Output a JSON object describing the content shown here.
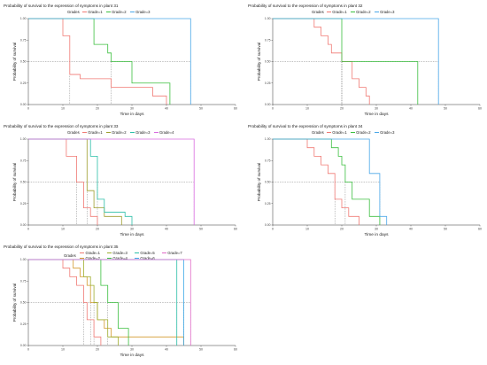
{
  "chart_data": [
    {
      "type": "line",
      "subtype": "kaplan-meier-step",
      "title": "Probability of survival to the expression of symptoms in plant 31",
      "xlabel": "Time in days",
      "ylabel": "Probability of survival",
      "xlim": [
        0,
        60
      ],
      "ylim": [
        0,
        1
      ],
      "x_ticks": [
        "0",
        "10",
        "20",
        "30",
        "40",
        "50",
        "60"
      ],
      "y_ticks": [
        "0.00",
        "0.25",
        "0.50",
        "0.75",
        "1.00"
      ],
      "legend_title": "Grades",
      "legend_position": "top",
      "median_line": 0.5,
      "series": [
        {
          "name": "Grade=1",
          "color": "#F07A74",
          "x": [
            0,
            10,
            12,
            15,
            24,
            36,
            40
          ],
          "y": [
            1.0,
            0.8,
            0.35,
            0.3,
            0.2,
            0.1,
            0.0
          ]
        },
        {
          "name": "Grade=2",
          "color": "#3BBF3F",
          "x": [
            0,
            19,
            23,
            24,
            30,
            41
          ],
          "y": [
            1.0,
            0.7,
            0.6,
            0.5,
            0.25,
            0.0
          ]
        },
        {
          "name": "Grade=3",
          "color": "#4AA7E8",
          "x": [
            0,
            47
          ],
          "y": [
            1.0,
            0.0
          ]
        }
      ]
    },
    {
      "type": "line",
      "subtype": "kaplan-meier-step",
      "title": "Probability of survival to the expression of symptoms in plant 32",
      "xlabel": "Time in days",
      "ylabel": "Probability of survival",
      "xlim": [
        0,
        60
      ],
      "ylim": [
        0,
        1
      ],
      "x_ticks": [
        "0",
        "10",
        "20",
        "30",
        "40",
        "50",
        "60"
      ],
      "y_ticks": [
        "0.00",
        "0.25",
        "0.50",
        "0.75",
        "1.00"
      ],
      "legend_title": "Grades",
      "legend_position": "top",
      "median_line": 0.5,
      "series": [
        {
          "name": "Grade=1",
          "color": "#F07A74",
          "x": [
            0,
            12,
            14,
            16,
            17,
            20,
            23,
            25,
            27,
            28
          ],
          "y": [
            1.0,
            0.9,
            0.8,
            0.7,
            0.6,
            0.5,
            0.3,
            0.2,
            0.1,
            0.0
          ]
        },
        {
          "name": "Grade=2",
          "color": "#3BBF3F",
          "x": [
            0,
            20,
            23,
            42
          ],
          "y": [
            1.0,
            0.5,
            0.5,
            0.0
          ]
        },
        {
          "name": "Grade=3",
          "color": "#4AA7E8",
          "x": [
            0,
            48
          ],
          "y": [
            1.0,
            0.0
          ]
        }
      ]
    },
    {
      "type": "line",
      "subtype": "kaplan-meier-step",
      "title": "Probability of survival to the expression of symptoms in plant 33",
      "xlabel": "Time in days",
      "ylabel": "Probability of survival",
      "xlim": [
        0,
        60
      ],
      "ylim": [
        0,
        1
      ],
      "x_ticks": [
        "0",
        "10",
        "20",
        "30",
        "40",
        "50",
        "60"
      ],
      "y_ticks": [
        "0.00",
        "0.25",
        "0.50",
        "0.75",
        "1.00"
      ],
      "legend_title": "Grades",
      "legend_position": "top",
      "median_line": 0.5,
      "series": [
        {
          "name": "Grade=1",
          "color": "#F07A74",
          "x": [
            0,
            11,
            14,
            16,
            18,
            20
          ],
          "y": [
            1.0,
            0.8,
            0.5,
            0.2,
            0.1,
            0.0
          ]
        },
        {
          "name": "Grade=2",
          "color": "#9E9E2E",
          "x": [
            0,
            17,
            19,
            22,
            27
          ],
          "y": [
            1.0,
            0.4,
            0.2,
            0.1,
            0.0
          ]
        },
        {
          "name": "Grade=3",
          "color": "#2BBFA8",
          "x": [
            0,
            18,
            20,
            22,
            28,
            30
          ],
          "y": [
            1.0,
            0.8,
            0.3,
            0.15,
            0.1,
            0.0
          ]
        },
        {
          "name": "Grade=4",
          "color": "#D86BE0",
          "x": [
            0,
            48
          ],
          "y": [
            1.0,
            0.0
          ]
        }
      ]
    },
    {
      "type": "line",
      "subtype": "kaplan-meier-step",
      "title": "Probability of survival to the expression of symptoms in plant 34",
      "xlabel": "Time in days",
      "ylabel": "Probability of survival",
      "xlim": [
        0,
        60
      ],
      "ylim": [
        0,
        1
      ],
      "x_ticks": [
        "0",
        "10",
        "20",
        "30",
        "40",
        "50",
        "60"
      ],
      "y_ticks": [
        "0.00",
        "0.25",
        "0.50",
        "0.75",
        "1.00"
      ],
      "legend_title": "Grades",
      "legend_position": "top",
      "median_line": 0.5,
      "series": [
        {
          "name": "Grade=1",
          "color": "#F07A74",
          "x": [
            0,
            10,
            12,
            14,
            16,
            18,
            20,
            22,
            25
          ],
          "y": [
            1.0,
            0.9,
            0.8,
            0.7,
            0.6,
            0.3,
            0.2,
            0.1,
            0.0
          ]
        },
        {
          "name": "Grade=2",
          "color": "#3BBF3F",
          "x": [
            0,
            17,
            19,
            20,
            21,
            23,
            28,
            31
          ],
          "y": [
            1.0,
            0.9,
            0.8,
            0.7,
            0.5,
            0.3,
            0.1,
            0.0
          ]
        },
        {
          "name": "Grade=3",
          "color": "#4AA7E8",
          "x": [
            0,
            28,
            31,
            33
          ],
          "y": [
            1.0,
            0.6,
            0.1,
            0.0
          ]
        }
      ]
    },
    {
      "type": "line",
      "subtype": "kaplan-meier-step",
      "title": "Probability of survival to the expression of symptoms in plant 35",
      "xlabel": "Time in days",
      "ylabel": "Probability of survival",
      "xlim": [
        0,
        60
      ],
      "ylim": [
        0,
        1
      ],
      "x_ticks": [
        "0",
        "10",
        "20",
        "30",
        "40",
        "50",
        "60"
      ],
      "y_ticks": [
        "0.00",
        "0.25",
        "0.50",
        "0.75",
        "1.00"
      ],
      "legend_title": "Grades",
      "legend_position": "top",
      "median_line": 0.5,
      "series": [
        {
          "name": "Grade=1",
          "color": "#F07A74",
          "x": [
            0,
            10,
            12,
            14,
            16,
            17,
            19,
            21
          ],
          "y": [
            1.0,
            0.9,
            0.8,
            0.7,
            0.5,
            0.3,
            0.1,
            0.0
          ]
        },
        {
          "name": "Grade=2",
          "color": "#D39A2E",
          "x": [
            0,
            13,
            15,
            17,
            18,
            20,
            22,
            24,
            32,
            45
          ],
          "y": [
            1.0,
            0.9,
            0.8,
            0.7,
            0.5,
            0.3,
            0.2,
            0.1,
            0.1,
            0.0
          ]
        },
        {
          "name": "Grade=3",
          "color": "#9EAE2E",
          "x": [
            0,
            16,
            18,
            19,
            20,
            23,
            26
          ],
          "y": [
            1.0,
            0.8,
            0.7,
            0.5,
            0.3,
            0.1,
            0.0
          ]
        },
        {
          "name": "Grade=4",
          "color": "#3BBF3F",
          "x": [
            0,
            21,
            23,
            26,
            29
          ],
          "y": [
            1.0,
            0.7,
            0.5,
            0.2,
            0.0
          ]
        },
        {
          "name": "Grade=5",
          "color": "#2BBFA8",
          "x": [
            0,
            43
          ],
          "y": [
            1.0,
            0.0
          ]
        },
        {
          "name": "Grade=6",
          "color": "#3FA9E8",
          "x": [
            0,
            45
          ],
          "y": [
            1.0,
            0.0
          ]
        },
        {
          "name": "Grade=7",
          "color": "#E06BC8",
          "x": [
            0,
            47
          ],
          "y": [
            1.0,
            0.0
          ]
        }
      ]
    }
  ]
}
